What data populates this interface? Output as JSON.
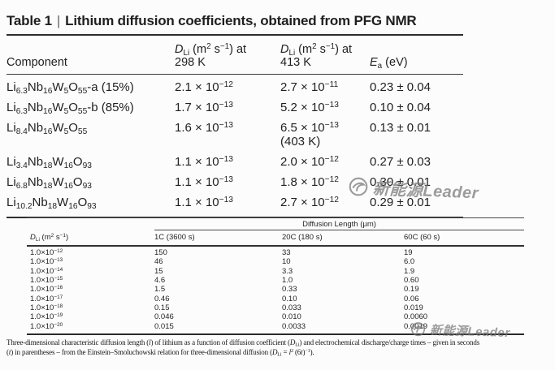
{
  "colors": {
    "background": "#fcfcfc",
    "text": "#1f1f1f",
    "rule": "#2e2e2e",
    "watermark": "#767676"
  },
  "title": {
    "prefix": "Table 1",
    "separator": "|",
    "text": "Lithium diffusion coefficients, obtained from PFG NMR"
  },
  "coefficients_table": {
    "headers": {
      "component": "Component",
      "d298_html": "<i>D</i><sub>Li</sub> (m<sup>2</sup> s<sup>−1</sup>) at<br>298 K",
      "d413_html": "<i>D</i><sub>Li</sub> (m<sup>2</sup> s<sup>−1</sup>) at<br>413 K",
      "ea_html": "<i>E</i><sub>a</sub> (eV)"
    },
    "rows": [
      {
        "component_html": "Li<sub>6.3</sub>Nb<sub>16</sub>W<sub>5</sub>O<sub>55</sub>-a (15%)",
        "d298_html": "2.1 × 10<sup>−12</sup>",
        "d413_html": "2.7 × 10<sup>−11</sup>",
        "ea": "0.23 ± 0.04"
      },
      {
        "component_html": "Li<sub>6.3</sub>Nb<sub>16</sub>W<sub>5</sub>O<sub>55</sub>-b (85%)",
        "d298_html": "1.7 × 10<sup>−13</sup>",
        "d413_html": "5.2 × 10<sup>−13</sup>",
        "ea": "0.10 ± 0.04"
      },
      {
        "component_html": "Li<sub>8.4</sub>Nb<sub>16</sub>W<sub>5</sub>O<sub>55</sub>",
        "d298_html": "1.6 × 10<sup>−13</sup>",
        "d413_html": "6.5 × 10<sup>−13</sup><br>(403 K)",
        "ea": "0.13 ± 0.01"
      },
      {
        "component_html": "Li<sub>3.4</sub>Nb<sub>18</sub>W<sub>16</sub>O<sub>93</sub>",
        "d298_html": "1.1 × 10<sup>−13</sup>",
        "d413_html": "2.0 × 10<sup>−12</sup>",
        "ea": "0.27 ± 0.03"
      },
      {
        "component_html": "Li<sub>6.8</sub>Nb<sub>18</sub>W<sub>16</sub>O<sub>93</sub>",
        "d298_html": "1.1 × 10<sup>−13</sup>",
        "d413_html": "1.8 × 10<sup>−12</sup>",
        "ea": "0.30 ± 0.01"
      },
      {
        "component_html": "Li<sub>10.2</sub>Nb<sub>18</sub>W<sub>16</sub>O<sub>93</sub>",
        "d298_html": "1.1 × 10<sup>−13</sup>",
        "d413_html": "2.7 × 10<sup>−12</sup>",
        "ea": "0.29 ± 0.01"
      }
    ]
  },
  "diffusion_length_table": {
    "col1_header_html": "<i>D</i><sub>Li</sub> (m<sup>2</sup> s<sup>−1</sup>)",
    "span_header": "Diffusion Length (μm)",
    "col_headers": [
      "1C (3600 s)",
      "20C (180 s)",
      "60C (60 s)"
    ],
    "rows": [
      {
        "d_html": "1.0×10<sup>−12</sup>",
        "l_1c": "150",
        "l_20c": "33",
        "l_60c": "19"
      },
      {
        "d_html": "1.0×10<sup>−13</sup>",
        "l_1c": "46",
        "l_20c": "10",
        "l_60c": "6.0"
      },
      {
        "d_html": "1.0×10<sup>−14</sup>",
        "l_1c": "15",
        "l_20c": "3.3",
        "l_60c": "1.9"
      },
      {
        "d_html": "1.0×10<sup>−15</sup>",
        "l_1c": "4.6",
        "l_20c": "1.0",
        "l_60c": "0.60"
      },
      {
        "d_html": "1.0×10<sup>−16</sup>",
        "l_1c": "1.5",
        "l_20c": "0.33",
        "l_60c": "0.19"
      },
      {
        "d_html": "1.0×10<sup>−17</sup>",
        "l_1c": "0.46",
        "l_20c": "0.10",
        "l_60c": "0.06"
      },
      {
        "d_html": "1.0×10<sup>−18</sup>",
        "l_1c": "0.15",
        "l_20c": "0.033",
        "l_60c": "0.019"
      },
      {
        "d_html": "1.0×10<sup>−19</sup>",
        "l_1c": "0.046",
        "l_20c": "0.010",
        "l_60c": "0.0060"
      },
      {
        "d_html": "1.0×10<sup>−20</sup>",
        "l_1c": "0.015",
        "l_20c": "0.0033",
        "l_60c": "0.0019"
      }
    ]
  },
  "footnote": {
    "line1_html": "Three-dimensional characteristic diffusion length (<i>l</i>) of lithium as a function of diffusion coefficient (<i>D</i><sub>Li</sub>) and electrochemical discharge/charge times – given in seconds",
    "line2_html": "(<i>t</i>) in parentheses – from the Einstein–Smoluchowski relation for three-dimensional diffusion (<i>D</i><sub>Li</sub> = <i>l</i><sup>2</sup> (6<i>t</i>)<sup>−1</sup>)."
  },
  "watermark": {
    "text": "新能源Leader"
  }
}
